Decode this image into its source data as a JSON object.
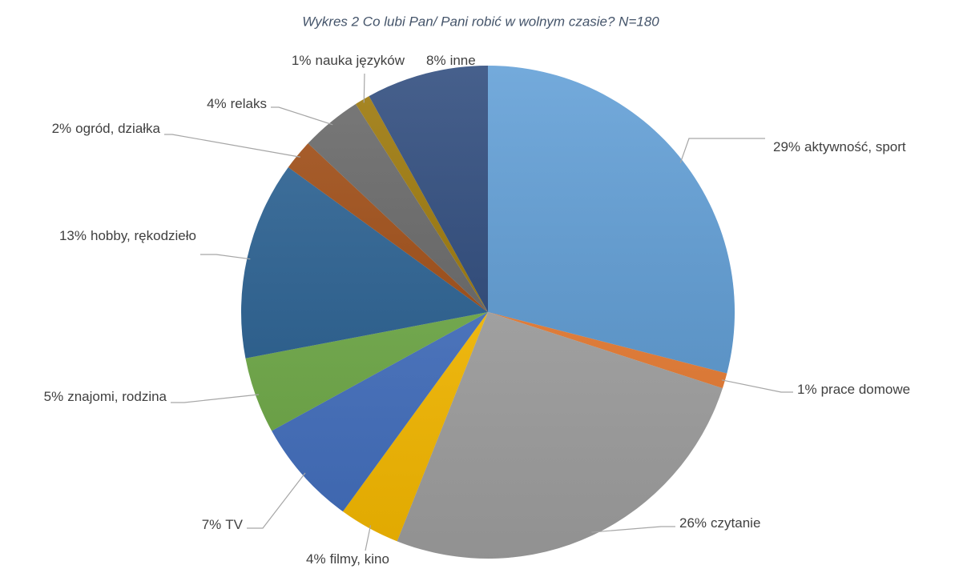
{
  "chart_data": {
    "type": "pie",
    "title": "Wykres 2 Co lubi Pan/ Pani robić w wolnym czasie? N=180",
    "categories": [
      "aktywność, sport",
      "prace domowe",
      "czytanie",
      "filmy, kino",
      "TV",
      "znajomi, rodzina",
      "hobby, rękodzieło",
      "ogród, działka",
      "relaks",
      "nauka języków",
      "inne"
    ],
    "values": [
      29,
      1,
      26,
      4,
      7,
      5,
      13,
      2,
      4,
      1,
      8
    ],
    "value_labels": [
      "29%",
      "1%",
      "26%",
      "4%",
      "7%",
      "5%",
      "13%",
      "2%",
      "4%",
      "1%",
      "8%"
    ],
    "colors": [
      "#5b9bd5",
      "#ed7d31",
      "#a5a5a5",
      "#ffc000",
      "#4472c4",
      "#70ad47",
      "#255e91",
      "#9e480e",
      "#636363",
      "#997300",
      "#264478"
    ]
  }
}
